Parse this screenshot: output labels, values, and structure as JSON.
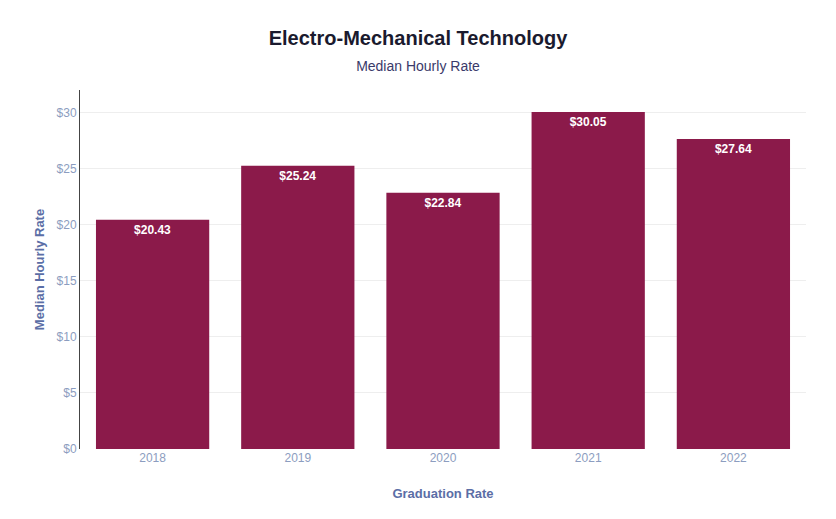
{
  "chart_data": {
    "type": "bar",
    "title": "Electro-Mechanical Technology",
    "subtitle": "Median Hourly Rate",
    "xlabel": "Graduation Rate",
    "ylabel": "Median Hourly Rate",
    "categories": [
      "2018",
      "2019",
      "2020",
      "2021",
      "2022"
    ],
    "values": [
      20.43,
      25.24,
      22.84,
      30.05,
      27.64
    ],
    "value_labels": [
      "$20.43",
      "$25.24",
      "$22.84",
      "$30.05",
      "$27.64"
    ],
    "data_labels": true,
    "color": "#8B1A4A",
    "ylim": [
      0,
      32
    ],
    "yticks": [
      {
        "value": 0,
        "label": "$0"
      },
      {
        "value": 5,
        "label": "$5"
      },
      {
        "value": 10,
        "label": "$10"
      },
      {
        "value": 15,
        "label": "$15"
      },
      {
        "value": 20,
        "label": "$20"
      },
      {
        "value": 25,
        "label": "$25"
      },
      {
        "value": 30,
        "label": "$30"
      }
    ],
    "grid": true
  }
}
